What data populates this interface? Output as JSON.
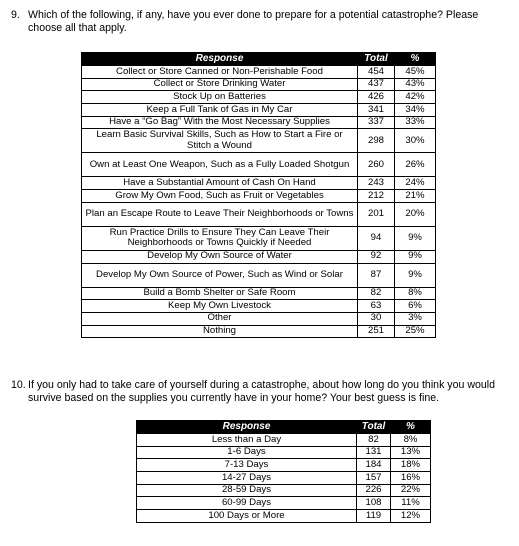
{
  "q9": {
    "number": "9.",
    "text": "Which of the following, if any, have you ever done to prepare for a potential catastrophe? Please choose all that apply.",
    "headers": {
      "response": "Response",
      "total": "Total",
      "pct": "%"
    },
    "rows": [
      {
        "response": "Collect or Store Canned or Non-Perishable Food",
        "total": "454",
        "pct": "45%"
      },
      {
        "response": "Collect or Store Drinking Water",
        "total": "437",
        "pct": "43%"
      },
      {
        "response": "Stock Up on Batteries",
        "total": "426",
        "pct": "42%"
      },
      {
        "response": "Keep a Full Tank of Gas in My Car",
        "total": "341",
        "pct": "34%"
      },
      {
        "response": "Have a “Go Bag” With the Most Necessary Supplies",
        "total": "337",
        "pct": "33%"
      },
      {
        "response": "Learn Basic Survival Skills, Such as How to Start a Fire or Stitch a Wound",
        "total": "298",
        "pct": "30%"
      },
      {
        "response": "Own at Least One Weapon, Such as a Fully Loaded Shotgun",
        "total": "260",
        "pct": "26%"
      },
      {
        "response": "Have a Substantial Amount of Cash On Hand",
        "total": "243",
        "pct": "24%"
      },
      {
        "response": "Grow My Own Food, Such as Fruit or Vegetables",
        "total": "212",
        "pct": "21%"
      },
      {
        "response": "Plan an Escape Route to Leave Their Neighborhoods or Towns",
        "total": "201",
        "pct": "20%"
      },
      {
        "response": "Run Practice Drills to Ensure They Can Leave Their Neighborhoods or Towns Quickly if Needed",
        "total": "94",
        "pct": "9%"
      },
      {
        "response": "Develop My Own Source of Water",
        "total": "92",
        "pct": "9%"
      },
      {
        "response": "Develop My Own Source of Power, Such as Wind or Solar",
        "total": "87",
        "pct": "9%"
      },
      {
        "response": "Build a Bomb Shelter or Safe Room",
        "total": "82",
        "pct": "8%"
      },
      {
        "response": "Keep My Own Livestock",
        "total": "63",
        "pct": "6%"
      },
      {
        "response": "Other",
        "total": "30",
        "pct": "3%"
      },
      {
        "response": "Nothing",
        "total": "251",
        "pct": "25%"
      }
    ]
  },
  "q10": {
    "number": "10.",
    "text": "If you only had to take care of yourself during a catastrophe, about how long do you think you would survive based on the supplies you currently have in your home? Your best guess is fine.",
    "headers": {
      "response": "Response",
      "total": "Total",
      "pct": "%"
    },
    "rows": [
      {
        "response": "Less than a Day",
        "total": "82",
        "pct": "8%"
      },
      {
        "response": "1-6 Days",
        "total": "131",
        "pct": "13%"
      },
      {
        "response": "7-13 Days",
        "total": "184",
        "pct": "18%"
      },
      {
        "response": "14-27 Days",
        "total": "157",
        "pct": "16%"
      },
      {
        "response": "28-59 Days",
        "total": "226",
        "pct": "22%"
      },
      {
        "response": "60-99 Days",
        "total": "108",
        "pct": "11%"
      },
      {
        "response": "100 Days or More",
        "total": "119",
        "pct": "12%"
      }
    ]
  }
}
